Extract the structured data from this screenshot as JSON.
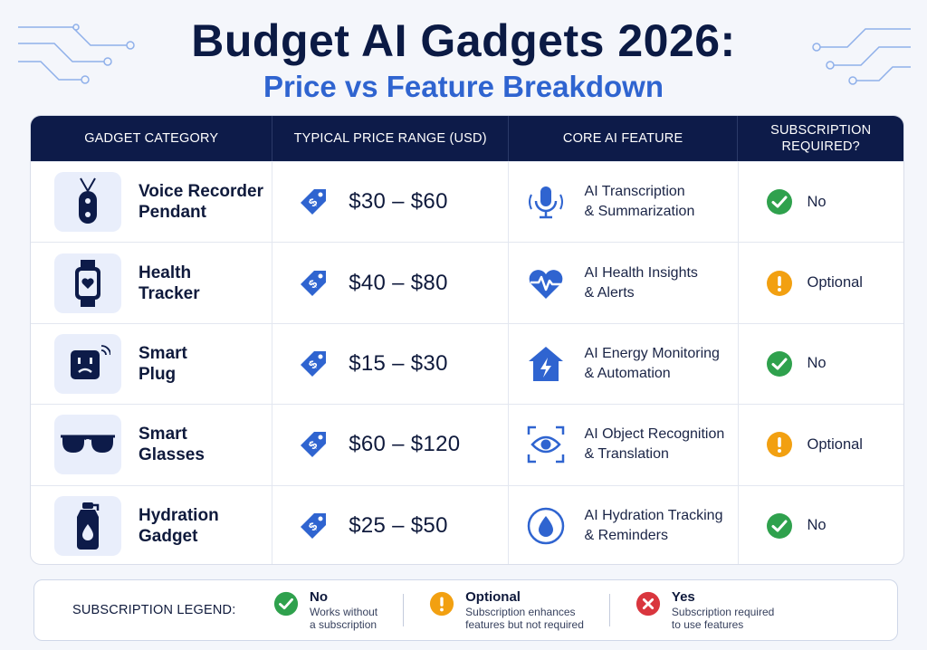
{
  "title": "Budget AI Gadgets 2026:",
  "subtitle": "Price vs Feature Breakdown",
  "headers": [
    "GADGET CATEGORY",
    "TYPICAL PRICE RANGE (USD)",
    "CORE AI FEATURE",
    "SUBSCRIPTION REQUIRED?"
  ],
  "rows": [
    {
      "category_line1": "Voice Recorder",
      "category_line2": "Pendant",
      "icon": "pendant-icon",
      "price": "$30 – $60",
      "feature_line1": "AI Transcription",
      "feature_line2": "& Summarization",
      "feature_icon": "microphone-icon",
      "subscription": "No",
      "status": "no"
    },
    {
      "category_line1": "Health",
      "category_line2": "Tracker",
      "icon": "smartwatch-icon",
      "price": "$40 – $80",
      "feature_line1": "AI Health Insights",
      "feature_line2": "& Alerts",
      "feature_icon": "heartbeat-icon",
      "subscription": "Optional",
      "status": "optional"
    },
    {
      "category_line1": "Smart",
      "category_line2": "Plug",
      "icon": "smart-plug-icon",
      "price": "$15 – $30",
      "feature_line1": "AI Energy Monitoring",
      "feature_line2": "& Automation",
      "feature_icon": "energy-home-icon",
      "subscription": "No",
      "status": "no"
    },
    {
      "category_line1": "Smart",
      "category_line2": "Glasses",
      "icon": "glasses-icon",
      "price": "$60 – $120",
      "feature_line1": "AI Object Recognition",
      "feature_line2": "& Translation",
      "feature_icon": "eye-scan-icon",
      "subscription": "Optional",
      "status": "optional"
    },
    {
      "category_line1": "Hydration",
      "category_line2": "Gadget",
      "icon": "water-bottle-icon",
      "price": "$25 – $50",
      "feature_line1": "AI Hydration Tracking",
      "feature_line2": "& Reminders",
      "feature_icon": "water-drop-icon",
      "subscription": "No",
      "status": "no"
    }
  ],
  "legend": {
    "title": "SUBSCRIPTION LEGEND:",
    "items": [
      {
        "label": "No",
        "desc_line1": "Works without",
        "desc_line2": "a subscription",
        "status": "no"
      },
      {
        "label": "Optional",
        "desc_line1": "Subscription enhances",
        "desc_line2": "features but not required",
        "status": "optional"
      },
      {
        "label": "Yes",
        "desc_line1": "Subscription required",
        "desc_line2": "to use features",
        "status": "yes"
      }
    ]
  },
  "colors": {
    "navy": "#0d1b49",
    "accent_blue": "#2f64d0",
    "green": "#2fa14d",
    "orange": "#f2a011",
    "red": "#d9363e"
  }
}
